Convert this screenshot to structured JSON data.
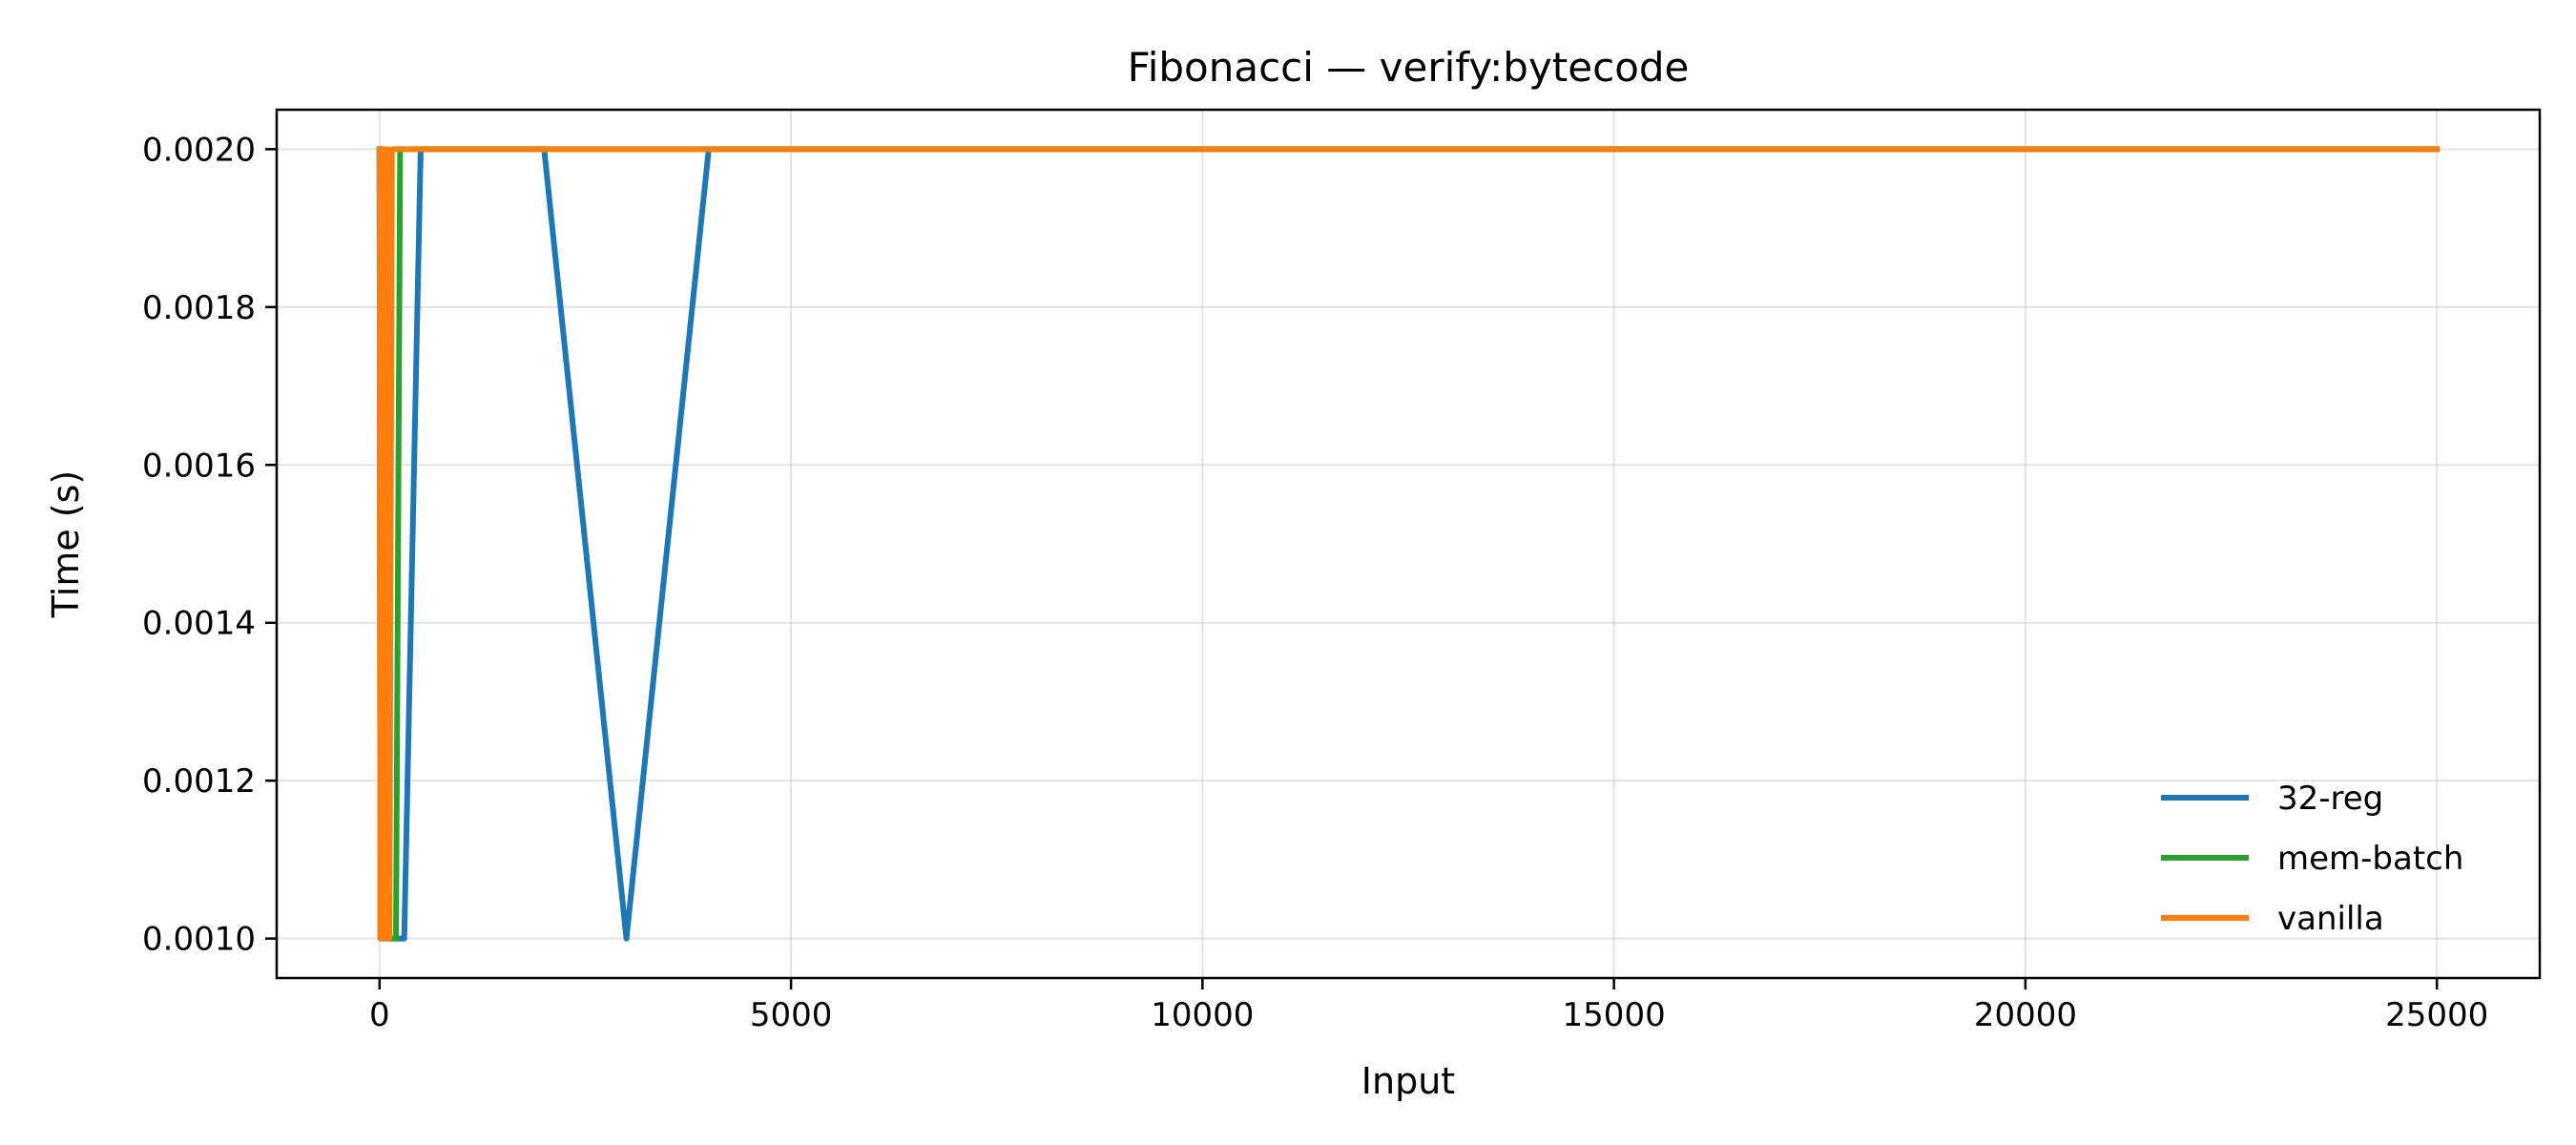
{
  "chart_data": {
    "type": "line",
    "title": "Fibonacci — verify:bytecode",
    "xlabel": "Input",
    "ylabel": "Time (s)",
    "xlim": [
      -1250,
      26250
    ],
    "ylim": [
      0.00095,
      0.00205
    ],
    "xticks": [
      0,
      5000,
      10000,
      15000,
      20000,
      25000
    ],
    "xtick_labels": [
      "0",
      "5000",
      "10000",
      "15000",
      "20000",
      "25000"
    ],
    "yticks": [
      0.001,
      0.0012,
      0.0014,
      0.0016,
      0.0018,
      0.002
    ],
    "ytick_labels": [
      "0.0010",
      "0.0012",
      "0.0014",
      "0.0016",
      "0.0018",
      "0.0020"
    ],
    "grid": true,
    "legend": "lower-right",
    "series": [
      {
        "name": "32-reg",
        "color": "#1f77b4",
        "x": [
          0,
          10,
          20,
          30,
          50,
          100,
          200,
          300,
          500,
          1000,
          2000,
          3000,
          4000,
          5000,
          10000,
          25000
        ],
        "y": [
          0.002,
          0.001,
          0.002,
          0.001,
          0.001,
          0.001,
          0.001,
          0.001,
          0.002,
          0.002,
          0.002,
          0.001,
          0.002,
          0.002,
          0.002,
          0.002
        ]
      },
      {
        "name": "mem-batch",
        "color": "#2ca02c",
        "x": [
          0,
          10,
          20,
          30,
          50,
          100,
          200,
          250,
          500,
          1000,
          2000,
          5000,
          10000,
          25000
        ],
        "y": [
          0.002,
          0.001,
          0.002,
          0.001,
          0.001,
          0.001,
          0.001,
          0.002,
          0.002,
          0.002,
          0.002,
          0.002,
          0.002,
          0.002
        ]
      },
      {
        "name": "vanilla",
        "color": "#ff7f0e",
        "x": [
          0,
          10,
          20,
          30,
          40,
          50,
          60,
          80,
          100,
          120,
          150,
          200,
          500,
          1000,
          5000,
          10000,
          25000
        ],
        "y": [
          0.002,
          0.001,
          0.002,
          0.001,
          0.002,
          0.001,
          0.002,
          0.001,
          0.002,
          0.001,
          0.002,
          0.002,
          0.002,
          0.002,
          0.002,
          0.002,
          0.002
        ]
      }
    ]
  }
}
